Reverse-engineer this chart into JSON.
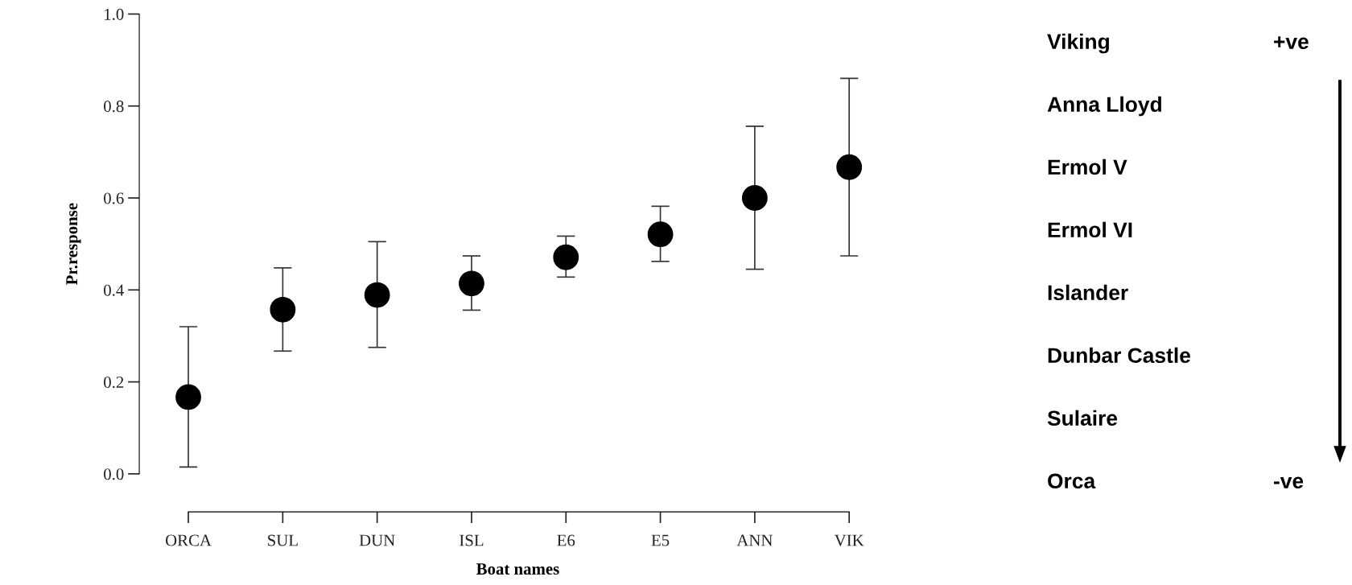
{
  "chart_data": {
    "type": "scatter",
    "xlabel": "Boat names",
    "ylabel": "Pr.response",
    "categories": [
      "ORCA",
      "SUL",
      "DUN",
      "ISL",
      "E6",
      "E5",
      "ANN",
      "VIK"
    ],
    "values": [
      0.167,
      0.357,
      0.389,
      0.414,
      0.471,
      0.521,
      0.6,
      0.667
    ],
    "errors": [
      [
        0.015,
        0.32
      ],
      [
        0.267,
        0.448
      ],
      [
        0.275,
        0.505
      ],
      [
        0.356,
        0.474
      ],
      [
        0.428,
        0.517
      ],
      [
        0.462,
        0.582
      ],
      [
        0.445,
        0.756
      ],
      [
        0.474,
        0.86
      ]
    ],
    "color": "#000000",
    "marker": "circle",
    "ylim": [
      0,
      1
    ],
    "yticks": [
      {
        "value": 0,
        "label": "0.0"
      },
      0.2,
      0.4,
      0.6,
      0.8,
      {
        "value": 1,
        "label": "1.0"
      }
    ],
    "annotations": [
      "Viking",
      "Anna Lloyd",
      "Ermol V",
      "Ermol VI",
      "Islander",
      "Dunbar Castle",
      "Sulaire",
      "Orca",
      "+ve",
      "-ve"
    ]
  }
}
